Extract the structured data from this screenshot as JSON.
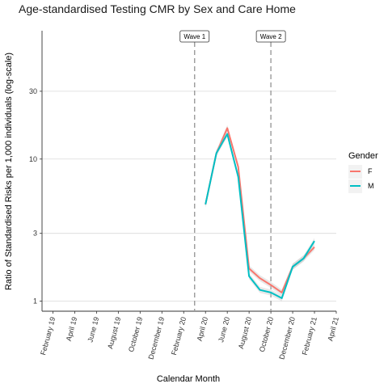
{
  "chart_data": {
    "type": "line",
    "title": "Age-standardised Testing CMR by Sex and Care Home",
    "xlabel": "Calendar Month",
    "ylabel": "Ratio of Standardised Risks per 1,000 individuals (log-scale)",
    "y_scale": "log",
    "ylim": [
      0.85,
      80
    ],
    "yticks": [
      1,
      3,
      10,
      30
    ],
    "ytick_labels": [
      "1",
      "3",
      "10",
      "30"
    ],
    "xticks": [
      "February 19",
      "April 19",
      "June 19",
      "August 19",
      "October 19",
      "December 19",
      "February 20",
      "April 20",
      "June 20",
      "August 20",
      "October 20",
      "December 20",
      "February 21",
      "April 21"
    ],
    "x_range": [
      "2019-01",
      "2021-04"
    ],
    "grid": "horizontal major lines",
    "legend": {
      "title": "Gender",
      "position": "right"
    },
    "reference_lines": [
      {
        "label": "Wave 1",
        "x": "2020-03"
      },
      {
        "label": "Wave 2",
        "x": "2020-10"
      }
    ],
    "series": [
      {
        "name": "F",
        "color": "#F8766D",
        "x": [
          "2020-04",
          "2020-05",
          "2020-06",
          "2020-07",
          "2020-08",
          "2020-09",
          "2020-10",
          "2020-11",
          "2020-12",
          "2021-01",
          "2021-02"
        ],
        "values": [
          4.8,
          11,
          16.5,
          8.8,
          1.7,
          1.45,
          1.3,
          1.15,
          1.75,
          2.0,
          2.4
        ]
      },
      {
        "name": "M",
        "color": "#00BFC4",
        "x": [
          "2020-04",
          "2020-05",
          "2020-06",
          "2020-07",
          "2020-08",
          "2020-09",
          "2020-10",
          "2020-11",
          "2020-12",
          "2021-01",
          "2021-02"
        ],
        "values": [
          4.8,
          11,
          15,
          7.5,
          1.5,
          1.2,
          1.15,
          1.05,
          1.75,
          2.0,
          2.65
        ]
      }
    ]
  }
}
